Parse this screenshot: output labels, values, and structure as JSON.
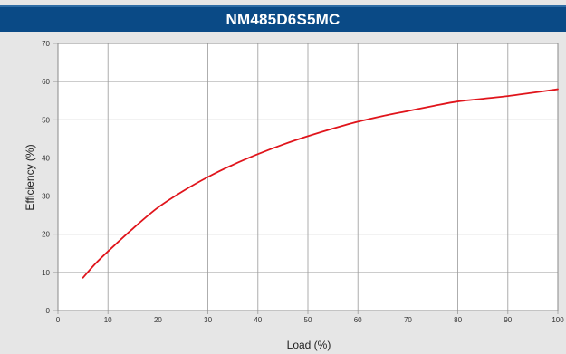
{
  "colors": {
    "background": "#e6e6e6",
    "title_bar": "#0a4a86",
    "plot_background": "#ffffff",
    "grid": "#9a9a9a",
    "curve": "#e0141b"
  },
  "chart_data": {
    "type": "line",
    "title": "NM485D6S5MC",
    "xlabel": "Load (%)",
    "ylabel": "Efficiency (%)",
    "xlim": [
      0,
      100
    ],
    "ylim": [
      0,
      70
    ],
    "x_ticks": [
      "0",
      "10",
      "20",
      "30",
      "40",
      "50",
      "60",
      "70",
      "80",
      "90",
      "100"
    ],
    "y_ticks": [
      "0",
      "10",
      "20",
      "30",
      "40",
      "50",
      "60",
      "70"
    ],
    "grid": true,
    "legend": "none",
    "series": [
      {
        "x": [
          5,
          7.5,
          10,
          15,
          20,
          25,
          30,
          35,
          40,
          45,
          50,
          55,
          60,
          65,
          70,
          75,
          80,
          85,
          90,
          95,
          100
        ],
        "y": [
          8.6,
          12.3,
          15.5,
          21.5,
          27,
          31.3,
          35,
          38.2,
          41,
          43.5,
          45.7,
          47.7,
          49.5,
          51,
          52.3,
          53.6,
          54.8,
          55.5,
          56.2,
          57.1,
          58
        ]
      }
    ]
  }
}
